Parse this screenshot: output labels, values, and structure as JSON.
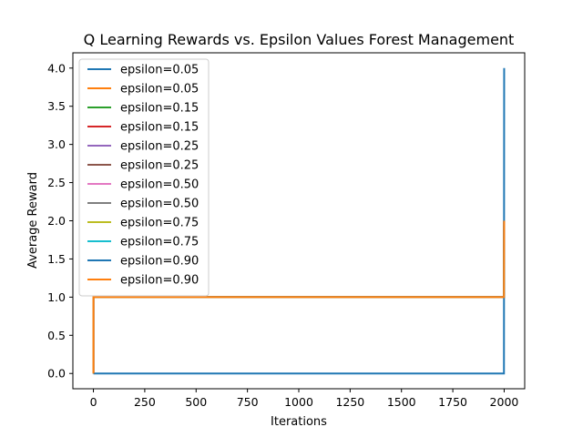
{
  "chart_data": {
    "type": "line",
    "title": "Q Learning Rewards vs. Epsilon Values Forest Management",
    "xlabel": "Iterations",
    "ylabel": "Average Reward",
    "xlim": [
      -100,
      2100
    ],
    "ylim": [
      -0.2,
      4.2
    ],
    "xticks": [
      0,
      250,
      500,
      750,
      1000,
      1250,
      1500,
      1750,
      2000
    ],
    "yticks": [
      0.0,
      0.5,
      1.0,
      1.5,
      2.0,
      2.5,
      3.0,
      3.5,
      4.0
    ],
    "xtick_labels": [
      "0",
      "250",
      "500",
      "750",
      "1000",
      "1250",
      "1500",
      "1750",
      "2000"
    ],
    "ytick_labels": [
      "0.0",
      "0.5",
      "1.0",
      "1.5",
      "2.0",
      "2.5",
      "3.0",
      "3.5",
      "4.0"
    ],
    "grid": false,
    "legend_position": "upper-left",
    "series": [
      {
        "name": "epsilon=0.05",
        "color": "#1f77b4",
        "x": [
          0,
          0,
          1999,
          2000
        ],
        "y": [
          0,
          1,
          1,
          2
        ]
      },
      {
        "name": "epsilon=0.05",
        "color": "#ff7f0e",
        "x": [
          0,
          0,
          1999,
          2000
        ],
        "y": [
          0,
          1,
          1,
          2
        ]
      },
      {
        "name": "epsilon=0.15",
        "color": "#2ca02c",
        "x": [
          0,
          0,
          1999,
          2000
        ],
        "y": [
          0,
          1,
          1,
          2
        ]
      },
      {
        "name": "epsilon=0.15",
        "color": "#d62728",
        "x": [
          0,
          0,
          1999,
          2000
        ],
        "y": [
          0,
          1,
          1,
          2
        ]
      },
      {
        "name": "epsilon=0.25",
        "color": "#9467bd",
        "x": [
          0,
          0,
          1999,
          2000
        ],
        "y": [
          0,
          1,
          1,
          2
        ]
      },
      {
        "name": "epsilon=0.25",
        "color": "#8c564b",
        "x": [
          0,
          0,
          1999,
          2000
        ],
        "y": [
          0,
          1,
          1,
          2
        ]
      },
      {
        "name": "epsilon=0.50",
        "color": "#e377c2",
        "x": [
          0,
          0,
          1999,
          2000
        ],
        "y": [
          0,
          1,
          1,
          2
        ]
      },
      {
        "name": "epsilon=0.50",
        "color": "#7f7f7f",
        "x": [
          0,
          0,
          1999,
          2000
        ],
        "y": [
          0,
          1,
          1,
          2
        ]
      },
      {
        "name": "epsilon=0.75",
        "color": "#bcbd22",
        "x": [
          0,
          0,
          1999,
          2000
        ],
        "y": [
          0,
          1,
          1,
          2
        ]
      },
      {
        "name": "epsilon=0.75",
        "color": "#17becf",
        "x": [
          0,
          0,
          1999,
          2000
        ],
        "y": [
          0,
          1,
          1,
          2
        ]
      },
      {
        "name": "epsilon=0.90",
        "color": "#1f77b4",
        "x": [
          0,
          1999,
          2000
        ],
        "y": [
          0,
          0,
          4
        ]
      },
      {
        "name": "epsilon=0.90",
        "color": "#ff7f0e",
        "x": [
          0,
          0,
          1999,
          2000
        ],
        "y": [
          0,
          1,
          1,
          2
        ]
      }
    ]
  }
}
